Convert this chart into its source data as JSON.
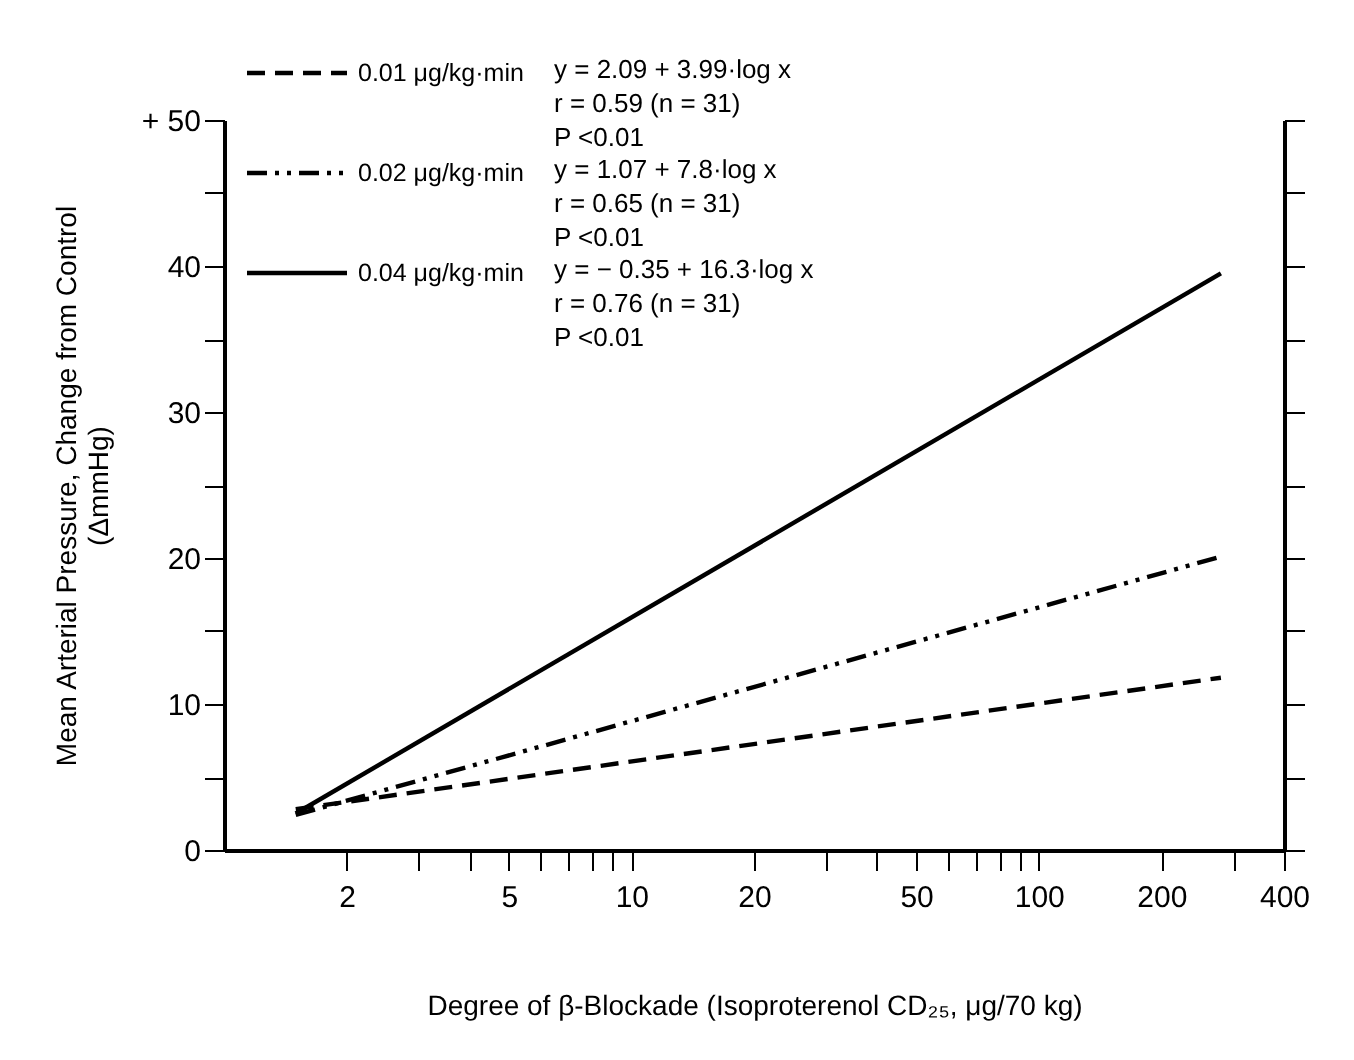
{
  "chart_data": {
    "type": "line",
    "xlabel": "Degree of β-Blockade (Isoproterenol CD₂₅, μg/70 kg)",
    "ylabel": "Mean Arterial Pressure, Change from Control\n(ΔmmHg)",
    "x": [
      1.5,
      280
    ],
    "series": [
      {
        "name": "0.01 μg/kg·min",
        "color": "#000000",
        "line_style": "dashed",
        "values": [
          2.8,
          11.8
        ]
      },
      {
        "name": "0.02 μg/kg·min",
        "color": "#000000",
        "line_style": "dashdot",
        "values": [
          2.4,
          20.1
        ]
      },
      {
        "name": "0.04 μg/kg·min",
        "color": "#000000",
        "line_style": "solid",
        "values": [
          2.5,
          39.5
        ]
      }
    ],
    "annotations": [
      "y = 2.09 + 3.99·log x",
      "r = 0.59 (n = 31)",
      "P <0.01",
      "y = 1.07 + 7.8·log x",
      "r = 0.65 (n = 31)",
      "P <0.01",
      "y = − 0.35 + 16.3·log x",
      "r = 0.76 (n = 31)",
      "P <0.01"
    ],
    "log": "x",
    "xlim": [
      1,
      400
    ],
    "xticks": [
      2,
      {
        "value": 3,
        "label": null
      },
      {
        "value": 4,
        "label": null
      },
      5,
      {
        "value": 6,
        "label": null
      },
      {
        "value": 7,
        "label": null
      },
      {
        "value": 8,
        "label": null
      },
      {
        "value": 9,
        "label": null
      },
      10,
      20,
      {
        "value": 30,
        "label": null
      },
      {
        "value": 40,
        "label": null
      },
      50,
      {
        "value": 60,
        "label": null
      },
      {
        "value": 70,
        "label": null
      },
      {
        "value": 80,
        "label": null
      },
      {
        "value": 90,
        "label": null
      },
      100,
      200,
      {
        "value": 300,
        "label": null
      },
      400
    ],
    "ylim": [
      0,
      50
    ],
    "yticks": [
      0,
      {
        "value": 5,
        "label": null
      },
      10,
      {
        "value": 15,
        "label": null
      },
      20,
      {
        "value": 25,
        "label": null
      },
      30,
      {
        "value": 35,
        "label": null
      },
      40,
      {
        "value": 45,
        "label": null
      },
      {
        "value": 50,
        "label": "+ 50"
      }
    ],
    "grid": false,
    "legend": "top left",
    "marker": "none"
  }
}
